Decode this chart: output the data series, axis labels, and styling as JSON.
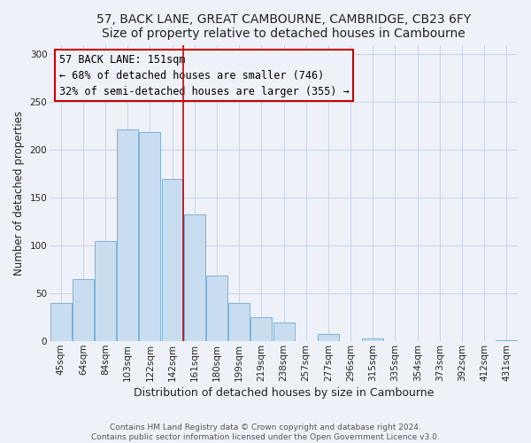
{
  "title": "57, BACK LANE, GREAT CAMBOURNE, CAMBRIDGE, CB23 6FY",
  "subtitle": "Size of property relative to detached houses in Cambourne",
  "xlabel": "Distribution of detached houses by size in Cambourne",
  "ylabel": "Number of detached properties",
  "bar_labels": [
    "45sqm",
    "64sqm",
    "84sqm",
    "103sqm",
    "122sqm",
    "142sqm",
    "161sqm",
    "180sqm",
    "199sqm",
    "219sqm",
    "238sqm",
    "257sqm",
    "277sqm",
    "296sqm",
    "315sqm",
    "335sqm",
    "354sqm",
    "373sqm",
    "392sqm",
    "412sqm",
    "431sqm"
  ],
  "bar_values": [
    40,
    65,
    105,
    222,
    219,
    170,
    133,
    69,
    40,
    25,
    20,
    0,
    8,
    0,
    3,
    0,
    0,
    0,
    0,
    0,
    1
  ],
  "bar_color": "#c8ddf0",
  "bar_edge_color": "#7fb0d8",
  "grid_color": "#c8d4e8",
  "background_color": "#eef2f8",
  "annotation_box_text": "57 BACK LANE: 151sqm\n← 68% of detached houses are smaller (746)\n32% of semi-detached houses are larger (355) →",
  "annotation_box_edge_color": "#cc0000",
  "annotation_box_bg": "#eef2f8",
  "vline_color": "#cc0000",
  "vline_x_index": 5.5,
  "ylim": [
    0,
    310
  ],
  "yticks": [
    0,
    50,
    100,
    150,
    200,
    250,
    300
  ],
  "footer_text": "Contains HM Land Registry data © Crown copyright and database right 2024.\nContains public sector information licensed under the Open Government Licence v3.0.",
  "title_fontsize": 10,
  "ylabel_fontsize": 8.5,
  "xlabel_fontsize": 9,
  "tick_fontsize": 7.5,
  "annotation_fontsize": 8.5,
  "footer_fontsize": 6.5
}
